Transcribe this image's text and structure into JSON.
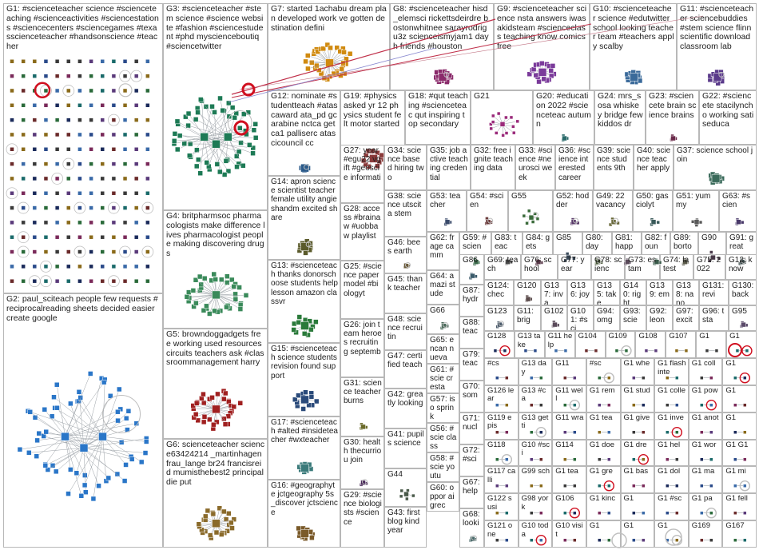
{
  "colors": {
    "border": "#b8b8b8",
    "edge": "#9aa0a6",
    "highlight": "#d01020",
    "link": "#c0304a"
  },
  "groups": [
    {
      "id": "G1",
      "label": "G1: #scienceteacher science #scienceteaching #scienceactivities #sciencestations #sciencecenters #sciencegames #texasscienceteacher #handsonscience #teacher",
      "style": "grid",
      "color": "#2a3a6a"
    },
    {
      "id": "G2",
      "label": "G2: paul_sciteach people few requests #reciprocalreading sheets decided easier create google",
      "style": "hub",
      "color": "#2a76c8"
    },
    {
      "id": "G3",
      "label": "G3: #scienceteacher #stem science #science website #fashion #sciencestudent #phd myscienceboutiq #sciencetwitter",
      "style": "hub",
      "color": "#1d7a55"
    },
    {
      "id": "G4",
      "label": "G4: britpharmsoc pharmacologists make difference lives pharmacologist people making discovering drugs",
      "style": "hub",
      "color": "#3a8a5a"
    },
    {
      "id": "G5",
      "label": "G5: browndoggadgets free working used resources circuits teachers ask #classroommanagement harry",
      "style": "hub",
      "color": "#a02020"
    },
    {
      "id": "G6",
      "label": "G6: scienceteacher science63424214 _martinhagen frau_lange br24 francisreid mumisthebest2 principal die put",
      "style": "hub",
      "color": "#8a6a2a"
    },
    {
      "id": "G7",
      "label": "G7: started 1achabu dream plan developed work ve gotten destination defini",
      "style": "hub",
      "color": "#d08a10"
    },
    {
      "id": "G8",
      "label": "G8: #scienceteacher hisd_elemsci rickettsdeirdre bostonwhitnee sarayrodrigu3z scienceismyjam1 day h friends #houston",
      "style": "hub",
      "color": "#8a2a6a"
    },
    {
      "id": "G9",
      "label": "G9: #scienceteacher science nsta answers iwasakidsteam #scienceclass teaching know comics free",
      "style": "hub",
      "color": "#7a3a9a"
    },
    {
      "id": "G10",
      "label": "G10: #scienceteacher science #edutwitter school looking teacher team #teachers apply scalby",
      "style": "hub",
      "color": "#3a6a9a"
    },
    {
      "id": "G11",
      "label": "G11: #scienceteacher sciencebuddies #stem science flinnscientific download classroom lab",
      "style": "hub",
      "color": "#5a3a8a"
    },
    {
      "id": "G12",
      "label": "G12: nominate #studentteach #atascaward ata_pd gcarabine nctca getca1 palliserc atascicouncil cc",
      "style": "hub",
      "color": "#2a5a8a"
    },
    {
      "id": "G19",
      "label": "G19: #physics asked yr 12 physics student felt motor started",
      "style": "hub",
      "color": "#8a3a3a"
    },
    {
      "id": "G18",
      "label": "G18: #qut teaching #scienceteac qut inspiring top secondary",
      "style": "hub",
      "color": "#6a4a2a"
    },
    {
      "id": "G21",
      "label": "G21",
      "style": "hub",
      "color": "#9a2a7a"
    },
    {
      "id": "G20",
      "label": "G20: #education 2022 #scienceteac autumn",
      "style": "hub",
      "color": "#2a6a6a"
    },
    {
      "id": "G24",
      "label": "G24: mrs_sosa whiskey bridge few kiddos dr",
      "style": "hub",
      "color": "#4a6a2a"
    },
    {
      "id": "G23",
      "label": "G23: #sciencete brain science brains",
      "style": "hub",
      "color": "#6a2a4a"
    },
    {
      "id": "G22",
      "label": "G22: #sciencete stacilyncho working satiseduca",
      "style": "hub",
      "color": "#3a3a7a"
    },
    {
      "id": "G13",
      "label": "G13: #scienceteach thanks donorschoose students help lesson amazon classvr",
      "style": "hub",
      "color": "#2a7a3a"
    },
    {
      "id": "G14",
      "label": "G14: apron science scientist teacher female utility angieshandm excited share",
      "style": "hub",
      "color": "#5a5a2a"
    },
    {
      "id": "G15",
      "label": "G15: #scienceteach science students revision found support",
      "style": "hub",
      "color": "#2a4a7a"
    },
    {
      "id": "G16",
      "label": "G16: #geographyte jctgeography 5s_discover jctscience",
      "style": "hub",
      "color": "#7a5a2a"
    },
    {
      "id": "G17",
      "label": "G17: #scienceteach #alted #insideteacher #wxteacher",
      "style": "hub",
      "color": "#3a7a7a"
    },
    {
      "id": "G27",
      "label": "G27: year #egu22 vgift #geoscie informati",
      "style": "hub",
      "color": "#5a2a7a"
    },
    {
      "id": "G28",
      "label": "G28: access #brainaw #uobbaw playlist",
      "style": "hub",
      "color": "#2a5a5a"
    },
    {
      "id": "G25",
      "label": "G25: #science paper model #biologyt",
      "style": "hub",
      "color": "#7a2a2a"
    },
    {
      "id": "G26",
      "label": "G26: join team heroes recruiting septemb",
      "style": "hub",
      "color": "#2a2a6a"
    },
    {
      "id": "G31",
      "label": "G31: science teacher burns",
      "style": "hub",
      "color": "#6a6a2a"
    },
    {
      "id": "G30",
      "label": "G30: health thecurriou join",
      "style": "hub",
      "color": "#4a2a5a"
    },
    {
      "id": "G29",
      "label": "G29: #science biologists #science",
      "style": "hub",
      "color": "#2a6a4a"
    },
    {
      "id": "G34",
      "label": "G34: science based hiring two",
      "style": "hub",
      "color": "#5a4a7a"
    },
    {
      "id": "G35",
      "label": "G35: job active teaching credential",
      "style": "hub",
      "color": "#7a4a4a"
    },
    {
      "id": "G32",
      "label": "G32: free ignite teaching data",
      "style": "hub",
      "color": "#4a7a4a"
    },
    {
      "id": "G33",
      "label": "G33: #science #neurosci week",
      "style": "hub",
      "color": "#4a4a7a"
    },
    {
      "id": "G36",
      "label": "G36: #science interested career",
      "style": "hub",
      "color": "#7a7a3a"
    },
    {
      "id": "G39",
      "label": "G39: science students 9th",
      "style": "hub",
      "color": "#3a5a7a"
    },
    {
      "id": "G40",
      "label": "G40: science teacher apply",
      "style": "hub",
      "color": "#6a3a6a"
    },
    {
      "id": "G37",
      "label": "G37: science school join",
      "style": "hub",
      "color": "#3a6a5a"
    },
    {
      "id": "G38",
      "label": "G38: science utscita stem",
      "style": "hub",
      "color": "#5a3a3a"
    },
    {
      "id": "G46",
      "label": "G46: bees earth",
      "style": "hub",
      "color": "#6a5a3a"
    },
    {
      "id": "G45",
      "label": "G45: thank teacher",
      "style": "hub",
      "color": "#3a3a5a"
    },
    {
      "id": "G48",
      "label": "G48: science recruitin",
      "style": "hub",
      "color": "#5a6a3a"
    },
    {
      "id": "G47",
      "label": "G47: certified teach",
      "style": "hub",
      "color": "#6a3a4a"
    },
    {
      "id": "G42",
      "label": "G42: greatly looking",
      "style": "hub",
      "color": "#3a6a6a"
    },
    {
      "id": "G41",
      "label": "G41: pupils science",
      "style": "hub",
      "color": "#6a4a6a"
    },
    {
      "id": "G44",
      "label": "G44",
      "style": "hub",
      "color": "#4a5a4a"
    },
    {
      "id": "G43",
      "label": "G43: first blog kind year",
      "style": "hub",
      "color": "#5a4a3a"
    },
    {
      "id": "G53",
      "label": "G53: teacher",
      "style": "hub",
      "color": "#3a4a6a"
    },
    {
      "id": "G54",
      "label": "G54: #scien",
      "style": "hub",
      "color": "#6a3a3a"
    },
    {
      "id": "G55",
      "label": "G55",
      "style": "hub",
      "color": "#3a6a3a"
    },
    {
      "id": "G52",
      "label": "G52: hodder",
      "style": "hub",
      "color": "#5a3a6a"
    },
    {
      "id": "G49",
      "label": "G49: 22 vacancy",
      "style": "hub",
      "color": "#6a6a3a"
    },
    {
      "id": "G50",
      "label": "G50: gasciolyt",
      "style": "hub",
      "color": "#3a5a5a"
    },
    {
      "id": "G51",
      "label": "G51: yummy",
      "style": "hub",
      "color": "#5a5a5a"
    },
    {
      "id": "G63",
      "label": "G63: #scien",
      "style": "hub",
      "color": "#4a3a6a"
    },
    {
      "id": "G62",
      "label": "G62: frage camm",
      "style": "hub",
      "color": "#6a4a3a"
    },
    {
      "id": "G59",
      "label": "G59: #scien",
      "style": "hub",
      "color": "#3a6a4a"
    },
    {
      "id": "G83",
      "label": "G83: teac",
      "style": "hub",
      "color": "#4a4a4a"
    },
    {
      "id": "G84",
      "label": "G84: gets",
      "style": "hub",
      "color": "#5a3a4a"
    },
    {
      "id": "G85",
      "label": "G85",
      "style": "hub",
      "color": "#3a4a5a"
    },
    {
      "id": "G80",
      "label": "G80: day",
      "style": "hub",
      "color": "#4a5a3a"
    },
    {
      "id": "G81",
      "label": "G81: happ",
      "style": "hub",
      "color": "#5a4a5a"
    },
    {
      "id": "G82",
      "label": "G82: foun",
      "style": "hub",
      "color": "#3a5a4a"
    },
    {
      "id": "G89",
      "label": "G89: borto",
      "style": "hub",
      "color": "#5a5a4a"
    },
    {
      "id": "G90",
      "label": "G90",
      "style": "hub",
      "color": "#4a3a4a"
    },
    {
      "id": "G91",
      "label": "G91: great",
      "style": "hub",
      "color": "#3a4a4a"
    },
    {
      "id": "G64",
      "label": "G64: amazi stude",
      "style": "hub",
      "color": "#6a5a4a"
    },
    {
      "id": "G66",
      "label": "G66",
      "style": "hub",
      "color": "#4a6a5a"
    },
    {
      "id": "G65",
      "label": "G65: encan nueva",
      "style": "hub",
      "color": "#5a4a6a"
    },
    {
      "id": "G61",
      "label": "G61: #scie cresta",
      "style": "hub",
      "color": "#4a5a6a"
    },
    {
      "id": "G57",
      "label": "G57: iso sprink",
      "style": "hub",
      "color": "#6a4a4a"
    },
    {
      "id": "G56",
      "label": "G56: #scie class",
      "style": "hub",
      "color": "#4a6a4a"
    },
    {
      "id": "G58",
      "label": "G58: #scie youtu",
      "style": "hub",
      "color": "#5a5a6a"
    },
    {
      "id": "G60",
      "label": "G60: oppor aigrec",
      "style": "hub",
      "color": "#6a5a5a"
    },
    {
      "id": "G86",
      "label": "G86",
      "style": "hub",
      "color": "#3a5a6a"
    },
    {
      "id": "G87",
      "label": "G87: hydr",
      "style": "hub",
      "color": "#5a6a5a"
    },
    {
      "id": "G88",
      "label": "G88: teac",
      "style": "hub",
      "color": "#6a4a5a"
    },
    {
      "id": "G79",
      "label": "G79: teac",
      "style": "hub",
      "color": "#4a4a6a"
    },
    {
      "id": "G70",
      "label": "G70: som",
      "style": "hub",
      "color": "#5a6a4a"
    },
    {
      "id": "G71",
      "label": "G71: nucl",
      "style": "hub",
      "color": "#6a5a6a"
    },
    {
      "id": "G72",
      "label": "G72: #sci",
      "style": "hub",
      "color": "#4a5a5a"
    },
    {
      "id": "G67",
      "label": "G67: help",
      "style": "hub",
      "color": "#5a4a4a"
    },
    {
      "id": "G68",
      "label": "G68: looki",
      "style": "hub",
      "color": "#4a6a6a"
    },
    {
      "id": "G69",
      "label": "G69: teach",
      "style": "hub",
      "color": "#6a6a5a"
    },
    {
      "id": "G76",
      "label": "G76: school",
      "style": "hub",
      "color": "#5a5a3a"
    },
    {
      "id": "G77",
      "label": "G77: year",
      "style": "hub",
      "color": "#3a3a4a"
    },
    {
      "id": "G78",
      "label": "G78: scienc",
      "style": "hub",
      "color": "#6a3a5a"
    },
    {
      "id": "G73",
      "label": "G73: estam",
      "style": "hub",
      "color": "#3a6a5a"
    },
    {
      "id": "G74",
      "label": "G74: latest",
      "style": "hub",
      "color": "#5a3a5a"
    },
    {
      "id": "G75",
      "label": "G75: 2022",
      "style": "hub",
      "color": "#4a4a5a"
    },
    {
      "id": "G12x",
      "label": "G12: know",
      "style": "hub",
      "color": "#5a5a5a"
    },
    {
      "id": "G124",
      "label": "G124: chec",
      "style": "hub",
      "color": "#4a5a4a"
    },
    {
      "id": "G120",
      "label": "G120",
      "style": "hub",
      "color": "#5a4a4a"
    },
    {
      "id": "G137",
      "label": "G137: inva",
      "style": "hub",
      "color": "#4a4a6a"
    },
    {
      "id": "G136",
      "label": "G136: joy",
      "style": "hub",
      "color": "#6a4a4a"
    },
    {
      "id": "G135",
      "label": "G135: take",
      "style": "hub",
      "color": "#4a6a4a"
    },
    {
      "id": "G140",
      "label": "G140: right",
      "style": "hub",
      "color": "#6a6a4a"
    },
    {
      "id": "G139",
      "label": "G139: em",
      "style": "hub",
      "color": "#4a4a4a"
    },
    {
      "id": "G138",
      "label": "G138: nano",
      "style": "hub",
      "color": "#5a5a6a"
    },
    {
      "id": "G131",
      "label": "G131: revi",
      "style": "hub",
      "color": "#6a5a5a"
    },
    {
      "id": "G130",
      "label": "G130: back",
      "style": "hub",
      "color": "#5a6a6a"
    },
    {
      "id": "G123",
      "label": "G123",
      "style": "hub",
      "color": "#4a5a6a"
    },
    {
      "id": "G11x",
      "label": "G11: brig",
      "style": "hub",
      "color": "#6a4a6a"
    },
    {
      "id": "G102",
      "label": "G102",
      "style": "hub",
      "color": "#5a4a5a"
    },
    {
      "id": "G101",
      "label": "G101: #sci",
      "style": "hub",
      "color": "#4a6a5a"
    },
    {
      "id": "G94",
      "label": "G94: omg",
      "style": "hub",
      "color": "#6a5a4a"
    },
    {
      "id": "G93",
      "label": "G93: scie",
      "style": "hub",
      "color": "#4a5a5a"
    },
    {
      "id": "G92",
      "label": "G92: leon",
      "style": "hub",
      "color": "#5a6a4a"
    },
    {
      "id": "G97",
      "label": "G97: excit",
      "style": "hub",
      "color": "#6a4a5a"
    },
    {
      "id": "G96",
      "label": "G96: tsta",
      "style": "hub",
      "color": "#4a4a5a"
    },
    {
      "id": "G95",
      "label": "G95",
      "style": "hub",
      "color": "#5a4a6a"
    }
  ],
  "tiny_groups": [
    "G128",
    "G13",
    "G11",
    "G104",
    "G109",
    "G108",
    "G107",
    "G1",
    "G1",
    "G1",
    "G1",
    "G1",
    "G1",
    "G1",
    "G1",
    "G1",
    "G1",
    "G1",
    "G1",
    "G1",
    "G1",
    "G1",
    "G1",
    "G1",
    "G1",
    "G1",
    "G1",
    "G1",
    "G1",
    "G1",
    "G1",
    "G1",
    "G1",
    "G1",
    "G1",
    "G1",
    "G1",
    "G1",
    "G1",
    "G1",
    "G1",
    "G1",
    "G1",
    "G1",
    "G1",
    "G1",
    "G1",
    "G1"
  ],
  "tiny_labels": {
    "r1": [
      "G128",
      "G13 take",
      "G11 help",
      "G104",
      "G109",
      "G108",
      "G107",
      "G1",
      "G1"
    ],
    "r2": [
      "#cs",
      "G13 day",
      "G11",
      "#sc",
      "G1 whe",
      "G1 flashinte",
      "G1 coll",
      "G1"
    ],
    "r3": [
      "G126 lear",
      "G13 #ca",
      "G11 well",
      "G1 rem",
      "G1 stud",
      "G1 colle",
      "G1 pow",
      "G1"
    ],
    "r4": [
      "G119 epis",
      "G13 getti",
      "G11 wra",
      "G1 tea",
      "G1 give",
      "G1 inve",
      "G1 anot",
      "G1"
    ],
    "r5": [
      "G118",
      "G10 #sci",
      "G114",
      "G1 doe",
      "G1 dre",
      "G1 hel",
      "G1 wor",
      "G1 G1"
    ],
    "r6": [
      "G117 calli",
      "G99 sch",
      "G1 tea",
      "G1 gre",
      "G1 bas",
      "G1 dol",
      "G1 ma",
      "G1 mi"
    ],
    "r7": [
      "G122 susi",
      "G98 york",
      "G106",
      "G1 kinc",
      "G1",
      "G1 #sc",
      "G1 pa",
      "G1 fell"
    ],
    "r8": [
      "G121 one",
      "G10 toda",
      "G10 visit",
      "G1",
      "G1",
      "G1",
      "G169",
      "G167"
    ]
  }
}
